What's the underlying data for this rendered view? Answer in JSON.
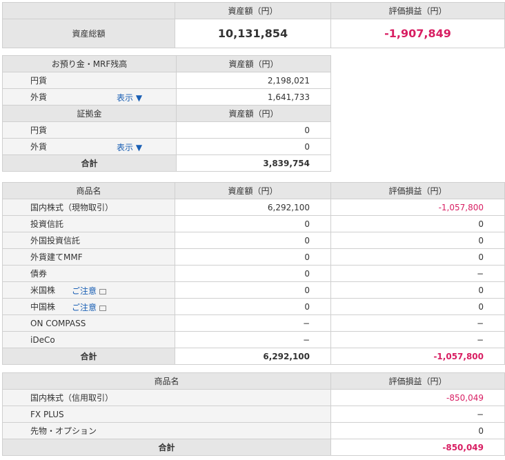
{
  "summary": {
    "headers": [
      "資産額（円）",
      "評価損益（円）"
    ],
    "label": "資産総額",
    "asset": "10,131,854",
    "pl": "-1,907,849"
  },
  "deposits": {
    "sections": [
      {
        "title": "お預り金・MRF残高",
        "header": "資産額（円）",
        "rows": [
          {
            "label": "円貨",
            "value": "2,198,021"
          },
          {
            "label": "外貨",
            "link": "表示 ▼",
            "value": "1,641,733"
          }
        ]
      },
      {
        "title": "証拠金",
        "header": "資産額（円）",
        "rows": [
          {
            "label": "円貨",
            "value": "0"
          },
          {
            "label": "外貨",
            "link": "表示 ▼",
            "value": "0"
          }
        ]
      }
    ],
    "total": {
      "label": "合計",
      "value": "3,839,754"
    }
  },
  "products": {
    "headers": [
      "商品名",
      "資産額（円）",
      "評価損益（円）"
    ],
    "rows": [
      {
        "label": "国内株式（現物取引）",
        "asset": "6,292,100",
        "pl": "-1,057,800"
      },
      {
        "label": "投資信託",
        "asset": "0",
        "pl": "0"
      },
      {
        "label": "外国投資信託",
        "asset": "0",
        "pl": "0"
      },
      {
        "label": "外貨建てMMF",
        "asset": "0",
        "pl": "0"
      },
      {
        "label": "債券",
        "asset": "0",
        "pl": "−"
      },
      {
        "label": "米国株",
        "link": "ご注意",
        "asset": "0",
        "pl": "0"
      },
      {
        "label": "中国株",
        "link": "ご注意",
        "asset": "0",
        "pl": "0"
      },
      {
        "label": "ON COMPASS",
        "asset": "−",
        "pl": "−"
      },
      {
        "label": "iDeCo",
        "asset": "−",
        "pl": "−"
      }
    ],
    "total": {
      "label": "合計",
      "asset": "6,292,100",
      "pl": "-1,057,800"
    }
  },
  "margin": {
    "headers": [
      "商品名",
      "評価損益（円）"
    ],
    "rows": [
      {
        "label": "国内株式（信用取引）",
        "pl": "-850,049"
      },
      {
        "label": "FX PLUS",
        "pl": "−"
      },
      {
        "label": "先物・オプション",
        "pl": "0"
      }
    ],
    "total": {
      "label": "合計",
      "pl": "-850,049"
    }
  }
}
